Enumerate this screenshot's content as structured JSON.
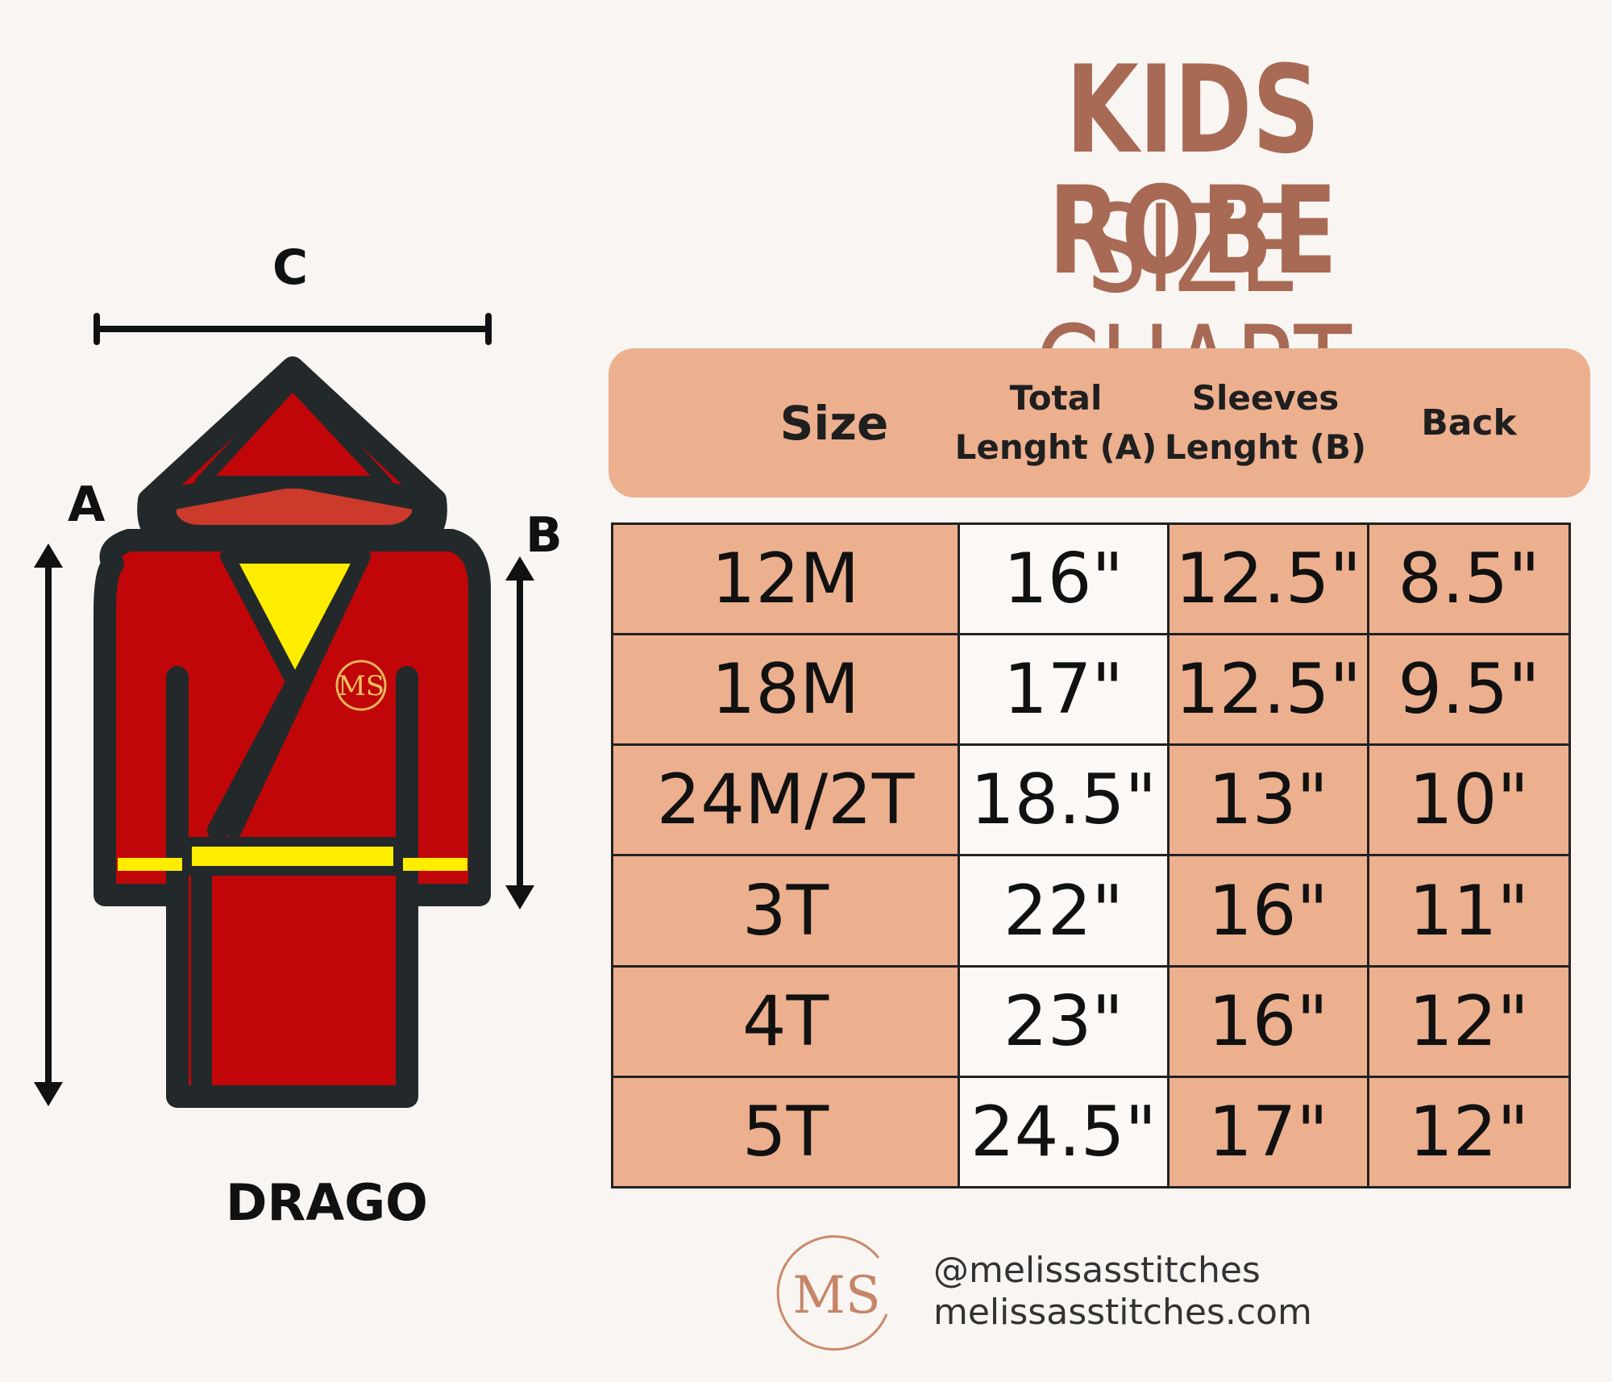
{
  "title": {
    "line1": "KIDS ROBE",
    "line2": "SIZE CHART"
  },
  "illustration": {
    "labels": {
      "a": "A",
      "b": "B",
      "c": "C"
    },
    "model_name": "DRAGO",
    "logo_text": "MS",
    "colors": {
      "robe": "#c00608",
      "hood": "#cc3a2c",
      "accent": "#ffed00",
      "outline": "#23292a"
    }
  },
  "table": {
    "headers": {
      "size": "Size",
      "total_line1": "Total",
      "total_line2": "Lenght (A)",
      "sleeves_line1": "Sleeves",
      "sleeves_line2": "Lenght (B)",
      "back": "Back"
    },
    "rows": [
      {
        "size": "12M",
        "total": "16\"",
        "sleeves": "12.5\"",
        "back": "8.5\""
      },
      {
        "size": "18M",
        "total": "17\"",
        "sleeves": "12.5\"",
        "back": "9.5\""
      },
      {
        "size": "24M/2T",
        "total": "18.5\"",
        "sleeves": "13\"",
        "back": "10\""
      },
      {
        "size": "3T",
        "total": "22\"",
        "sleeves": "16\"",
        "back": "11\""
      },
      {
        "size": "4T",
        "total": "23\"",
        "sleeves": "16\"",
        "back": "12\""
      },
      {
        "size": "5T",
        "total": "24.5\"",
        "sleeves": "17\"",
        "back": "12\""
      }
    ],
    "colors": {
      "cell": "#ecb08f",
      "highlight": "#fbf8f5",
      "border": "#222222"
    }
  },
  "footer": {
    "logo_text": "MS",
    "handle": "@melissasstitches",
    "website": "melissasstitches.com"
  }
}
